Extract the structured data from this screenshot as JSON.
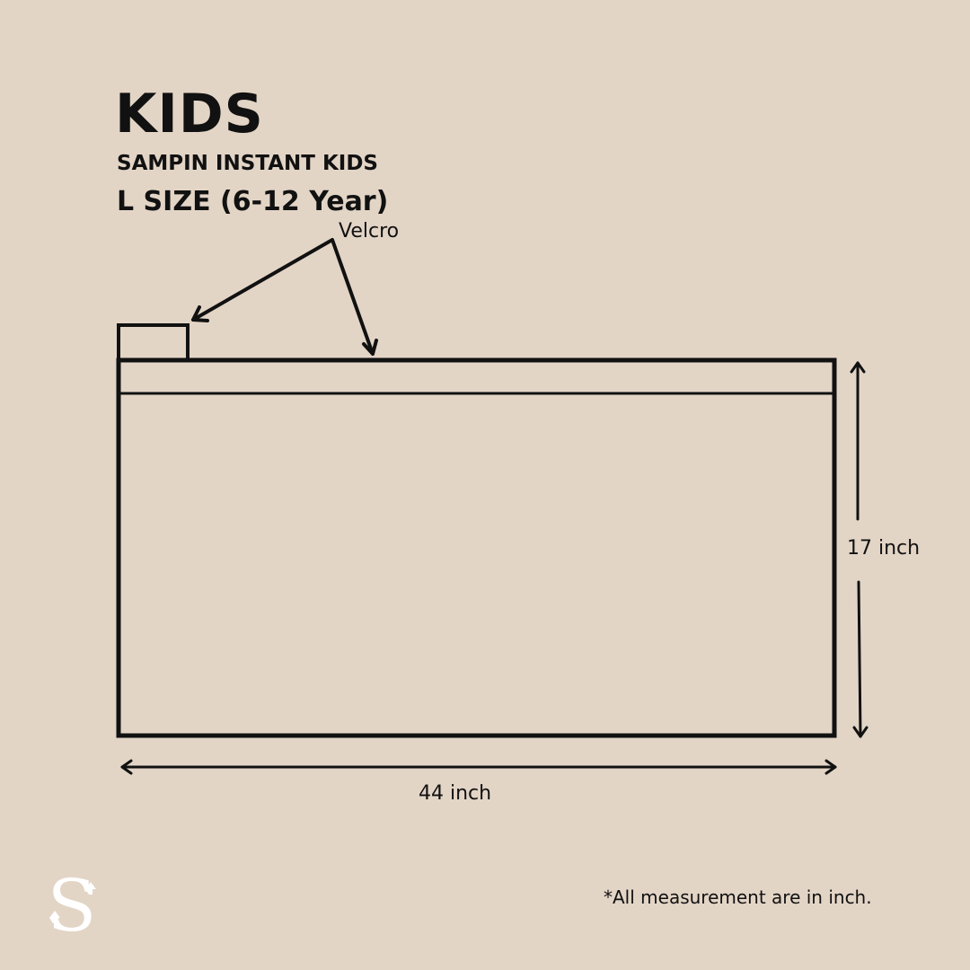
{
  "header": {
    "title": "KIDS",
    "subtitle": "SAMPIN INSTANT KIDS",
    "size_label": "L SIZE (6-12 Year)"
  },
  "diagram": {
    "callout_label": "Velcro",
    "height_label": "17 inch",
    "width_label": "44 inch"
  },
  "footer": {
    "note": "*All measurement are in inch.",
    "logo_letter": "S"
  },
  "colors": {
    "background": "#e3d5c6",
    "ink": "#111111",
    "logo": "#ffffff"
  }
}
